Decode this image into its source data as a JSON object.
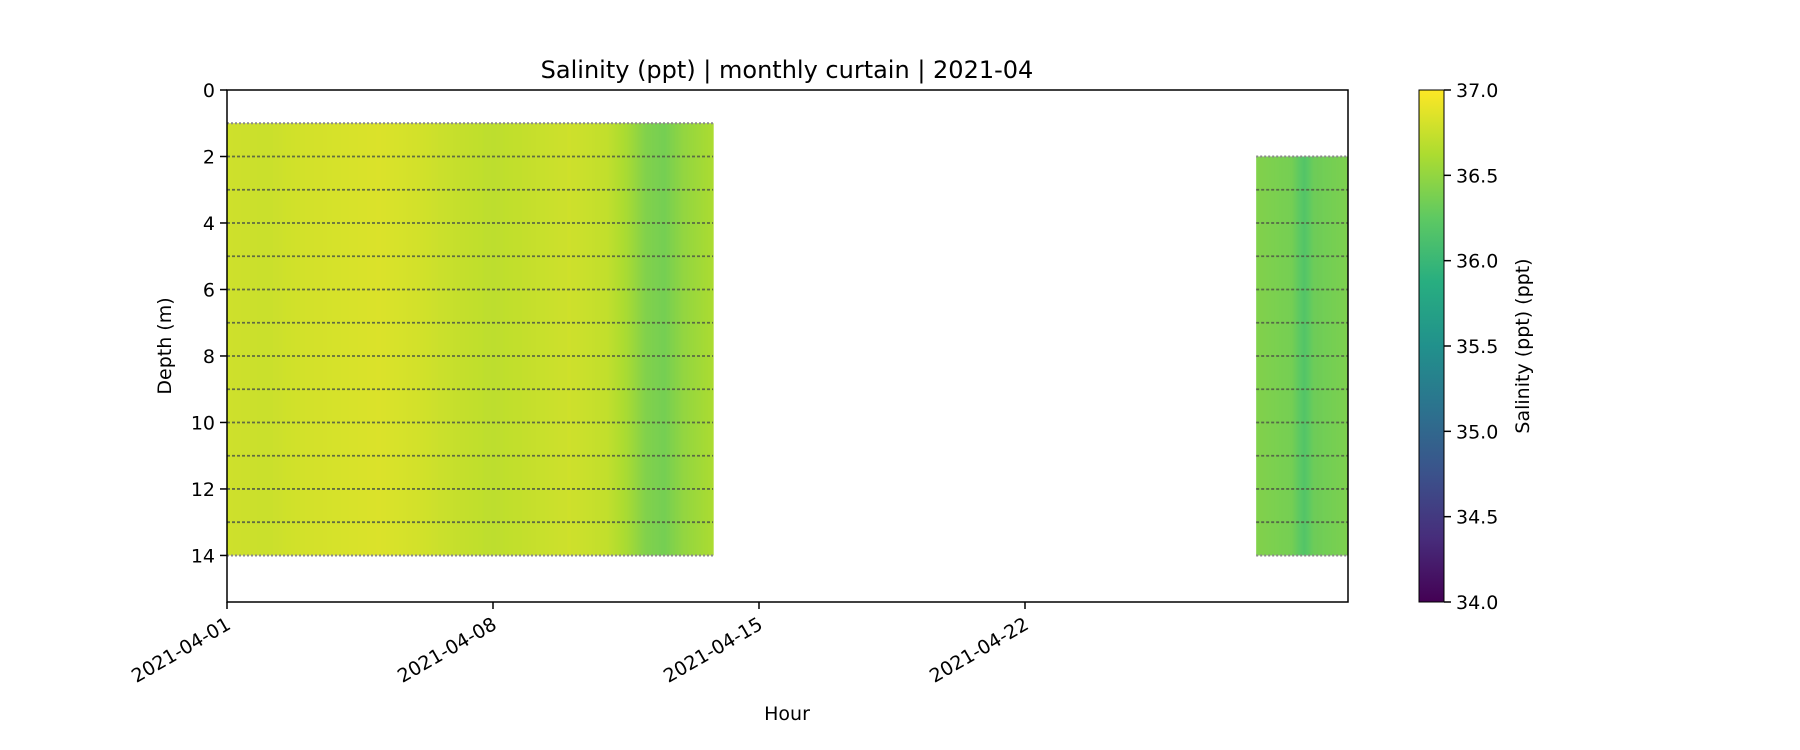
{
  "chart_data": {
    "type": "heatmap",
    "title": "Salinity (ppt) | monthly curtain | 2021-04",
    "xlabel": "Hour",
    "ylabel": "Depth (m)",
    "x_axis": {
      "type": "date",
      "range": [
        "2021-04-01",
        "2021-04-30T12:00"
      ],
      "ticks": [
        "2021-04-01",
        "2021-04-08",
        "2021-04-15",
        "2021-04-22"
      ],
      "tick_labels": [
        "2021-04-01",
        "2021-04-08",
        "2021-04-15",
        "2021-04-22"
      ]
    },
    "y_axis": {
      "range": [
        15.4,
        0
      ],
      "inverted": true,
      "ticks": [
        0,
        2,
        4,
        6,
        8,
        10,
        12,
        14
      ],
      "tick_labels": [
        "0",
        "2",
        "4",
        "6",
        "8",
        "10",
        "12",
        "14"
      ]
    },
    "colorbar": {
      "label": "Salinity (ppt) (ppt)",
      "colormap": "viridis",
      "range": [
        34.0,
        37.0
      ],
      "ticks": [
        34.0,
        34.5,
        35.0,
        35.5,
        36.0,
        36.5,
        37.0
      ],
      "tick_labels": [
        "34.0",
        "34.5",
        "35.0",
        "35.5",
        "36.0",
        "36.5",
        "37.0"
      ]
    },
    "grid": false,
    "segments": [
      {
        "time_start": "2021-04-01",
        "time_end": "2021-04-13T19:00",
        "depth_top": 1.0,
        "depth_bottom": 14.0,
        "salinity_profile": [
          [
            "2021-04-01",
            36.78
          ],
          [
            "2021-04-02",
            36.76
          ],
          [
            "2021-04-03",
            36.8
          ],
          [
            "2021-04-04",
            36.82
          ],
          [
            "2021-04-05",
            36.84
          ],
          [
            "2021-04-06",
            36.8
          ],
          [
            "2021-04-07",
            36.74
          ],
          [
            "2021-04-08",
            36.7
          ],
          [
            "2021-04-09",
            36.74
          ],
          [
            "2021-04-10",
            36.78
          ],
          [
            "2021-04-11",
            36.72
          ],
          [
            "2021-04-11T12:00",
            36.6
          ],
          [
            "2021-04-12",
            36.42
          ],
          [
            "2021-04-12T12:00",
            36.36
          ],
          [
            "2021-04-13",
            36.5
          ],
          [
            "2021-04-13T19:00",
            36.62
          ]
        ]
      },
      {
        "time_start": "2021-04-28T02:00",
        "time_end": "2021-04-30T12:00",
        "depth_top": 2.0,
        "depth_bottom": 14.0,
        "salinity_profile": [
          [
            "2021-04-28T02:00",
            36.42
          ],
          [
            "2021-04-29",
            36.36
          ],
          [
            "2021-04-29T08:00",
            36.18
          ],
          [
            "2021-04-29T14:00",
            36.32
          ],
          [
            "2021-04-30T12:00",
            36.4
          ]
        ]
      }
    ],
    "sensor_depths": [
      1,
      2,
      3,
      4,
      5,
      6,
      7,
      8,
      9,
      10,
      11,
      12,
      13,
      14
    ]
  }
}
